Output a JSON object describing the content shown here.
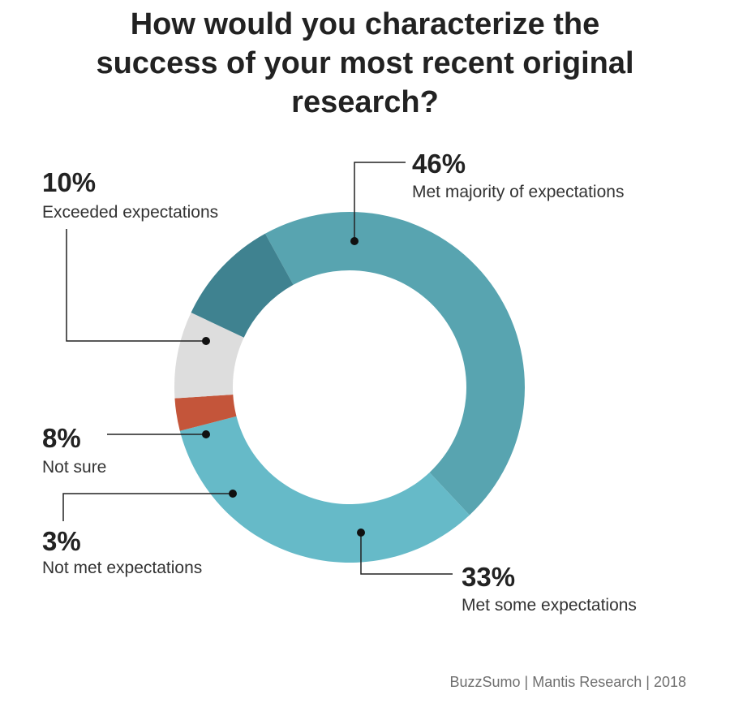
{
  "title_lines": [
    "How would you characterize the",
    "success of your most recent original",
    "research?"
  ],
  "source": "BuzzSumo | Mantis Research | 2018",
  "chart_data": {
    "type": "pie",
    "title": "How would you characterize the success of your most recent original research?",
    "donut": true,
    "slices": [
      {
        "label": "Met majority of expectations",
        "value": 46,
        "display": "46%",
        "color": "#58a4b0"
      },
      {
        "label": "Met some expectations",
        "value": 33,
        "display": "33%",
        "color": "#66bac8"
      },
      {
        "label": "Not met expectations",
        "value": 3,
        "display": "3%",
        "color": "#c4553a"
      },
      {
        "label": "Not sure",
        "value": 8,
        "display": "8%",
        "color": "#dddddd"
      },
      {
        "label": "Exceeded expectations",
        "value": 10,
        "display": "10%",
        "color": "#3f8290"
      }
    ]
  }
}
